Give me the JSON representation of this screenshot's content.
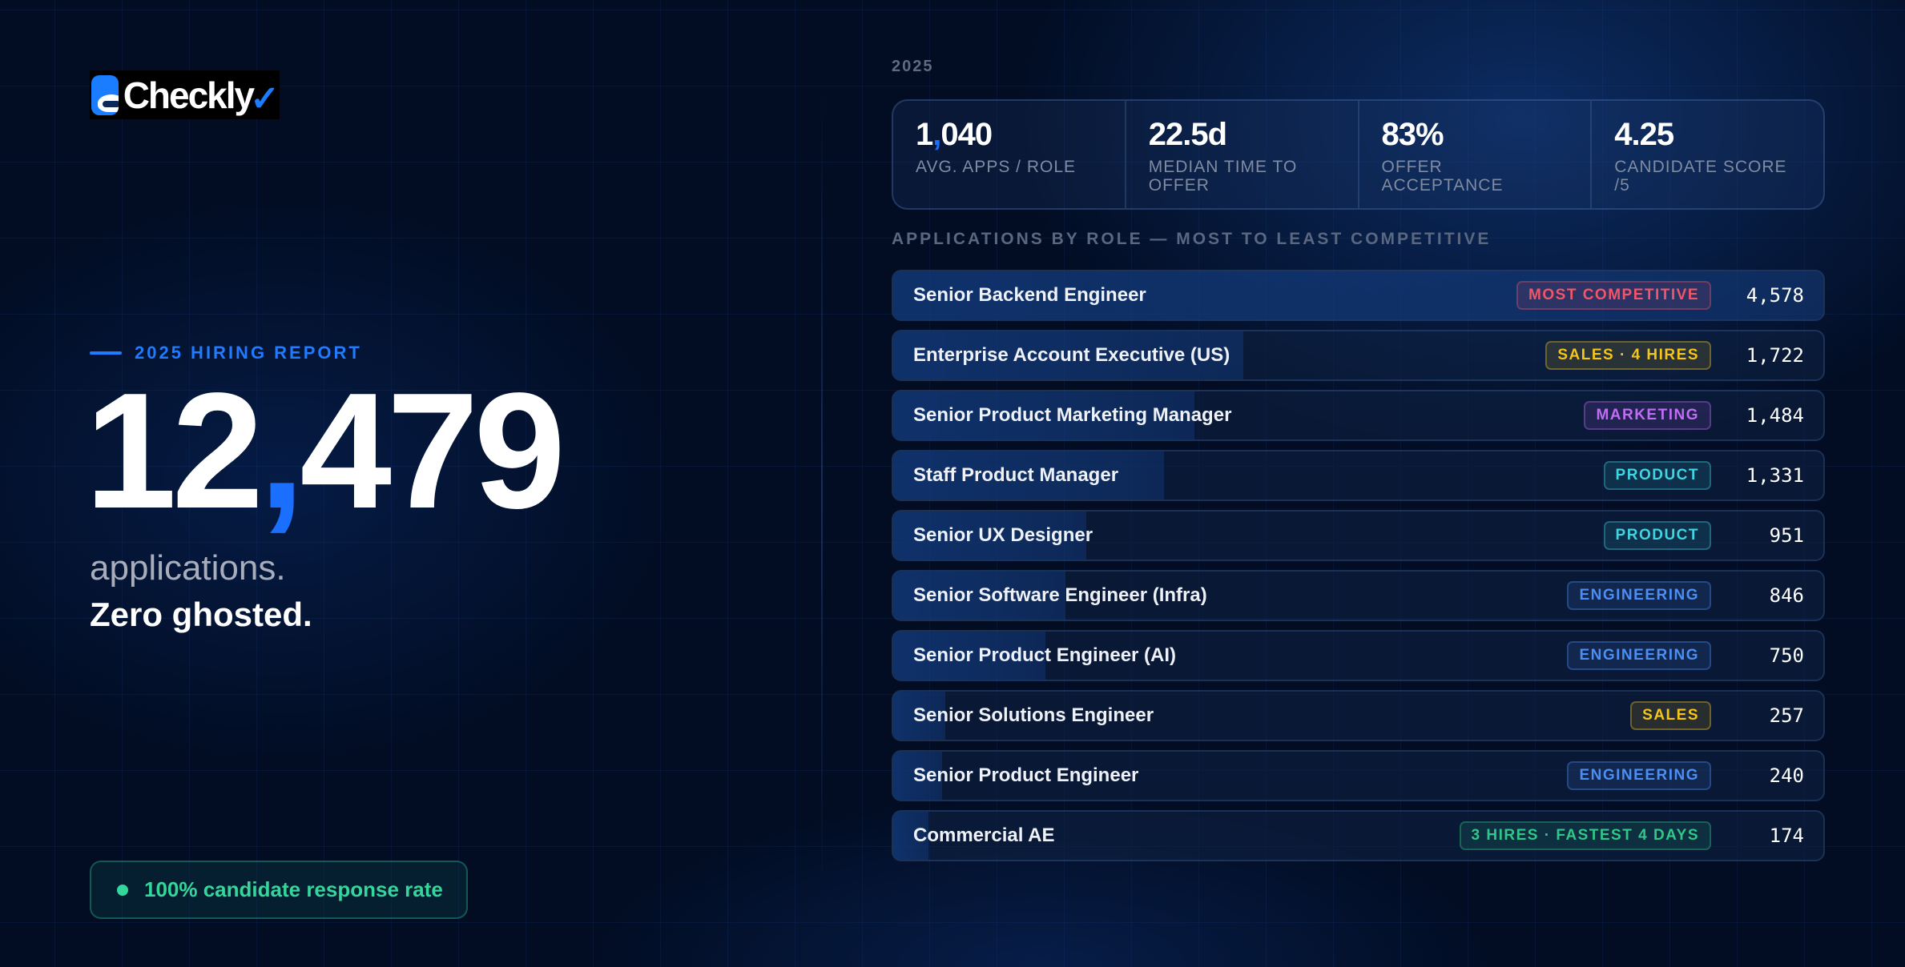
{
  "brand": {
    "name": "Checkly",
    "accent": "#1a6fff"
  },
  "hero": {
    "kicker": "2025 HIRING REPORT",
    "total_main_a": "12",
    "total_comma": ",",
    "total_main_b": "479",
    "line1": "applications.",
    "line2": "Zero ghosted.",
    "response_badge": "100% candidate response rate"
  },
  "right": {
    "year": "2025",
    "section_title": "APPLICATIONS BY ROLE — MOST TO LEAST COMPETITIVE"
  },
  "stats": [
    {
      "value_a": "1",
      "value_comma": ",",
      "value_b": "040",
      "label": "AVG. APPS / ROLE"
    },
    {
      "value_a": "22.5d",
      "value_comma": "",
      "value_b": "",
      "label": "MEDIAN TIME TO OFFER"
    },
    {
      "value_a": "83%",
      "value_comma": "",
      "value_b": "",
      "label": "OFFER ACCEPTANCE"
    },
    {
      "value_a": "4.25",
      "value_comma": "",
      "value_b": "",
      "label": "CANDIDATE SCORE /5"
    }
  ],
  "roles": [
    {
      "name": "Senior Backend Engineer",
      "badge": "MOST COMPETITIVE",
      "badge_color": "#f0556a",
      "count": "4,578",
      "value": 4578
    },
    {
      "name": "Enterprise Account Executive (US)",
      "badge": "SALES · 4 HIRES",
      "badge_color": "#f5c518",
      "count": "1,722",
      "value": 1722
    },
    {
      "name": "Senior Product Marketing Manager",
      "badge": "MARKETING",
      "badge_color": "#c06cf5",
      "count": "1,484",
      "value": 1484
    },
    {
      "name": "Staff Product Manager",
      "badge": "PRODUCT",
      "badge_color": "#3fd4e0",
      "count": "1,331",
      "value": 1331
    },
    {
      "name": "Senior UX Designer",
      "badge": "PRODUCT",
      "badge_color": "#3fd4e0",
      "count": "951",
      "value": 951
    },
    {
      "name": "Senior Software Engineer (Infra)",
      "badge": "ENGINEERING",
      "badge_color": "#4d8ef5",
      "count": "846",
      "value": 846
    },
    {
      "name": "Senior Product Engineer (AI)",
      "badge": "ENGINEERING",
      "badge_color": "#4d8ef5",
      "count": "750",
      "value": 750
    },
    {
      "name": "Senior Solutions Engineer",
      "badge": "SALES",
      "badge_color": "#f5c518",
      "count": "257",
      "value": 257
    },
    {
      "name": "Senior Product Engineer",
      "badge": "ENGINEERING",
      "badge_color": "#4d8ef5",
      "count": "240",
      "value": 240
    },
    {
      "name": "Commercial AE",
      "badge": "3 HIRES · FASTEST 4 DAYS",
      "badge_color": "#2fc88a",
      "count": "174",
      "value": 174
    }
  ]
}
